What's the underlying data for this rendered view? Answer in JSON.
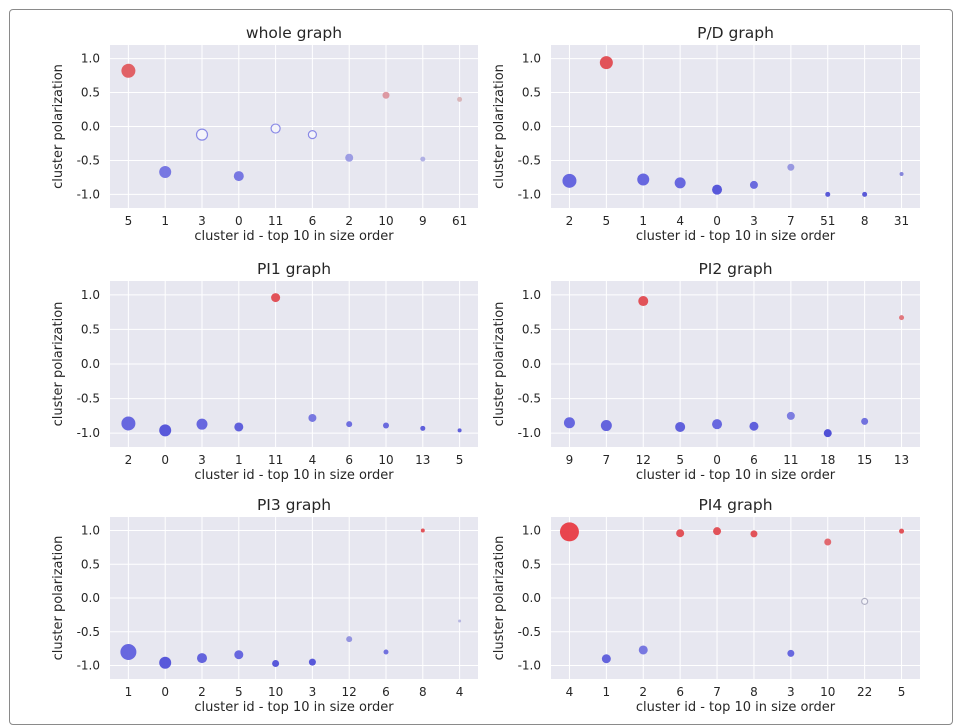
{
  "chart_data": [
    {
      "type": "scatter",
      "title": "whole graph",
      "xlabel": "cluster id - top 10 in size order",
      "ylabel": "cluster polarization",
      "ylim": [
        -1.2,
        1.2
      ],
      "yticks": [
        "1.0",
        "0.5",
        "0.0",
        "-0.5",
        "-1.0"
      ],
      "grid": true,
      "points": [
        {
          "id": "5",
          "y": 0.82,
          "size": 7.0,
          "color": "#e05a5e",
          "alpha": 0.95,
          "hollow": false
        },
        {
          "id": "1",
          "y": -0.67,
          "size": 6.0,
          "color": "#6a6ae0",
          "alpha": 0.9,
          "hollow": false
        },
        {
          "id": "3",
          "y": -0.12,
          "size": 5.5,
          "color": "#8a8ae6",
          "alpha": 0.9,
          "hollow": true
        },
        {
          "id": "0",
          "y": -0.73,
          "size": 5.0,
          "color": "#6a6ae0",
          "alpha": 0.9,
          "hollow": false
        },
        {
          "id": "11",
          "y": -0.03,
          "size": 4.5,
          "color": "#8a8ae6",
          "alpha": 0.9,
          "hollow": true
        },
        {
          "id": "6",
          "y": -0.12,
          "size": 4.0,
          "color": "#8a8ae6",
          "alpha": 0.9,
          "hollow": true
        },
        {
          "id": "2",
          "y": -0.46,
          "size": 4.0,
          "color": "#8a8ae0",
          "alpha": 0.8,
          "hollow": false
        },
        {
          "id": "10",
          "y": 0.46,
          "size": 3.5,
          "color": "#d98a94",
          "alpha": 0.85,
          "hollow": false
        },
        {
          "id": "9",
          "y": -0.48,
          "size": 2.5,
          "color": "#a0a0e0",
          "alpha": 0.8,
          "hollow": false
        },
        {
          "id": "61",
          "y": 0.4,
          "size": 2.5,
          "color": "#d4a8aa",
          "alpha": 0.8,
          "hollow": false
        }
      ]
    },
    {
      "type": "scatter",
      "title": "P/D graph",
      "xlabel": "cluster id - top 10 in size order",
      "ylabel": "cluster polarization",
      "ylim": [
        -1.2,
        1.2
      ],
      "yticks": [
        "1.0",
        "0.5",
        "0.0",
        "-0.5",
        "-1.0"
      ],
      "grid": true,
      "points": [
        {
          "id": "2",
          "y": -0.8,
          "size": 7.0,
          "color": "#6060dd",
          "alpha": 0.95,
          "hollow": false
        },
        {
          "id": "5",
          "y": 0.94,
          "size": 6.5,
          "color": "#e04a50",
          "alpha": 0.95,
          "hollow": false
        },
        {
          "id": "1",
          "y": -0.78,
          "size": 6.0,
          "color": "#6060dd",
          "alpha": 0.95,
          "hollow": false
        },
        {
          "id": "4",
          "y": -0.83,
          "size": 5.5,
          "color": "#6060dd",
          "alpha": 0.95,
          "hollow": false
        },
        {
          "id": "0",
          "y": -0.93,
          "size": 5.0,
          "color": "#5050d8",
          "alpha": 0.95,
          "hollow": false
        },
        {
          "id": "3",
          "y": -0.86,
          "size": 4.0,
          "color": "#5c5cdb",
          "alpha": 0.9,
          "hollow": false
        },
        {
          "id": "7",
          "y": -0.6,
          "size": 3.5,
          "color": "#8888dd",
          "alpha": 0.85,
          "hollow": false
        },
        {
          "id": "51",
          "y": -1.0,
          "size": 2.5,
          "color": "#4848d4",
          "alpha": 0.9,
          "hollow": false
        },
        {
          "id": "8",
          "y": -1.0,
          "size": 2.5,
          "color": "#4848d4",
          "alpha": 0.9,
          "hollow": false
        },
        {
          "id": "31",
          "y": -0.7,
          "size": 2.0,
          "color": "#7a7ad8",
          "alpha": 0.9,
          "hollow": false
        }
      ]
    },
    {
      "type": "scatter",
      "title": "PI1 graph",
      "xlabel": "cluster id - top 10 in size order",
      "ylabel": "cluster polarization",
      "ylim": [
        -1.2,
        1.2
      ],
      "yticks": [
        "1.0",
        "0.5",
        "0.0",
        "-0.5",
        "-1.0"
      ],
      "grid": true,
      "points": [
        {
          "id": "2",
          "y": -0.86,
          "size": 7.0,
          "color": "#6060dd",
          "alpha": 0.95,
          "hollow": false
        },
        {
          "id": "0",
          "y": -0.96,
          "size": 6.0,
          "color": "#5050d8",
          "alpha": 0.95,
          "hollow": false
        },
        {
          "id": "3",
          "y": -0.87,
          "size": 5.5,
          "color": "#6060dd",
          "alpha": 0.95,
          "hollow": false
        },
        {
          "id": "1",
          "y": -0.91,
          "size": 4.5,
          "color": "#5858da",
          "alpha": 0.95,
          "hollow": false
        },
        {
          "id": "11",
          "y": 0.96,
          "size": 4.5,
          "color": "#e04a50",
          "alpha": 0.95,
          "hollow": false
        },
        {
          "id": "4",
          "y": -0.78,
          "size": 4.0,
          "color": "#6a6ade",
          "alpha": 0.9,
          "hollow": false
        },
        {
          "id": "6",
          "y": -0.87,
          "size": 3.0,
          "color": "#6060dd",
          "alpha": 0.9,
          "hollow": false
        },
        {
          "id": "10",
          "y": -0.89,
          "size": 3.0,
          "color": "#5c5cdb",
          "alpha": 0.9,
          "hollow": false
        },
        {
          "id": "13",
          "y": -0.93,
          "size": 2.5,
          "color": "#5050d8",
          "alpha": 0.9,
          "hollow": false
        },
        {
          "id": "5",
          "y": -0.96,
          "size": 2.0,
          "color": "#5050d8",
          "alpha": 0.9,
          "hollow": false
        }
      ]
    },
    {
      "type": "scatter",
      "title": "PI2 graph",
      "xlabel": "cluster id - top 10 in size order",
      "ylabel": "cluster polarization",
      "ylim": [
        -1.2,
        1.2
      ],
      "yticks": [
        "1.0",
        "0.5",
        "0.0",
        "-0.5",
        "-1.0"
      ],
      "grid": true,
      "points": [
        {
          "id": "9",
          "y": -0.85,
          "size": 5.5,
          "color": "#6060dd",
          "alpha": 0.95,
          "hollow": false
        },
        {
          "id": "7",
          "y": -0.89,
          "size": 5.5,
          "color": "#5c5cdb",
          "alpha": 0.95,
          "hollow": false
        },
        {
          "id": "12",
          "y": 0.91,
          "size": 5.0,
          "color": "#e04a50",
          "alpha": 0.95,
          "hollow": false
        },
        {
          "id": "5",
          "y": -0.91,
          "size": 5.0,
          "color": "#5858da",
          "alpha": 0.95,
          "hollow": false
        },
        {
          "id": "0",
          "y": -0.87,
          "size": 5.0,
          "color": "#6060dd",
          "alpha": 0.95,
          "hollow": false
        },
        {
          "id": "6",
          "y": -0.9,
          "size": 4.5,
          "color": "#5858da",
          "alpha": 0.95,
          "hollow": false
        },
        {
          "id": "11",
          "y": -0.75,
          "size": 4.0,
          "color": "#7070de",
          "alpha": 0.9,
          "hollow": false
        },
        {
          "id": "18",
          "y": -1.0,
          "size": 4.0,
          "color": "#4848d4",
          "alpha": 0.95,
          "hollow": false
        },
        {
          "id": "15",
          "y": -0.83,
          "size": 3.5,
          "color": "#6464dc",
          "alpha": 0.9,
          "hollow": false
        },
        {
          "id": "13",
          "y": 0.67,
          "size": 2.5,
          "color": "#e06a70",
          "alpha": 0.9,
          "hollow": false
        }
      ]
    },
    {
      "type": "scatter",
      "title": "PI3 graph",
      "xlabel": "cluster id - top 10 in size order",
      "ylabel": "cluster polarization",
      "ylim": [
        -1.2,
        1.2
      ],
      "yticks": [
        "1.0",
        "0.5",
        "0.0",
        "-0.5",
        "-1.0"
      ],
      "grid": true,
      "points": [
        {
          "id": "1",
          "y": -0.8,
          "size": 8.0,
          "color": "#6060dd",
          "alpha": 0.95,
          "hollow": false
        },
        {
          "id": "0",
          "y": -0.96,
          "size": 6.0,
          "color": "#5050d8",
          "alpha": 0.95,
          "hollow": false
        },
        {
          "id": "2",
          "y": -0.89,
          "size": 5.0,
          "color": "#5c5cdb",
          "alpha": 0.95,
          "hollow": false
        },
        {
          "id": "5",
          "y": -0.84,
          "size": 4.5,
          "color": "#6060dd",
          "alpha": 0.95,
          "hollow": false
        },
        {
          "id": "10",
          "y": -0.97,
          "size": 3.5,
          "color": "#5050d8",
          "alpha": 0.95,
          "hollow": false
        },
        {
          "id": "3",
          "y": -0.95,
          "size": 3.5,
          "color": "#5050d8",
          "alpha": 0.95,
          "hollow": false
        },
        {
          "id": "12",
          "y": -0.61,
          "size": 3.0,
          "color": "#8484dc",
          "alpha": 0.85,
          "hollow": false
        },
        {
          "id": "6",
          "y": -0.8,
          "size": 2.5,
          "color": "#6464dc",
          "alpha": 0.9,
          "hollow": false
        },
        {
          "id": "8",
          "y": 1.0,
          "size": 2.0,
          "color": "#e04a50",
          "alpha": 0.95,
          "hollow": false
        },
        {
          "id": "4",
          "y": -0.34,
          "size": 1.5,
          "color": "#a8a8dc",
          "alpha": 0.8,
          "hollow": false
        }
      ]
    },
    {
      "type": "scatter",
      "title": "PI4 graph",
      "xlabel": "cluster id - top 10 in size order",
      "ylabel": "cluster polarization",
      "ylim": [
        -1.2,
        1.2
      ],
      "yticks": [
        "1.0",
        "0.5",
        "0.0",
        "-0.5",
        "-1.0"
      ],
      "grid": true,
      "points": [
        {
          "id": "4",
          "y": 0.98,
          "size": 9.5,
          "color": "#e83c44",
          "alpha": 0.95,
          "hollow": false
        },
        {
          "id": "1",
          "y": -0.9,
          "size": 4.5,
          "color": "#5c5cdb",
          "alpha": 0.95,
          "hollow": false
        },
        {
          "id": "2",
          "y": -0.77,
          "size": 4.5,
          "color": "#6a6ade",
          "alpha": 0.9,
          "hollow": false
        },
        {
          "id": "6",
          "y": 0.96,
          "size": 4.0,
          "color": "#e04a50",
          "alpha": 0.95,
          "hollow": false
        },
        {
          "id": "7",
          "y": 0.99,
          "size": 4.0,
          "color": "#e04a50",
          "alpha": 0.95,
          "hollow": false
        },
        {
          "id": "8",
          "y": 0.95,
          "size": 3.5,
          "color": "#e04a50",
          "alpha": 0.95,
          "hollow": false
        },
        {
          "id": "3",
          "y": -0.82,
          "size": 3.5,
          "color": "#6060dd",
          "alpha": 0.95,
          "hollow": false
        },
        {
          "id": "10",
          "y": 0.83,
          "size": 3.5,
          "color": "#e05a60",
          "alpha": 0.9,
          "hollow": false
        },
        {
          "id": "22",
          "y": -0.05,
          "size": 3.0,
          "color": "#b0b0c4",
          "alpha": 0.9,
          "hollow": true
        },
        {
          "id": "5",
          "y": 0.99,
          "size": 2.5,
          "color": "#e04a50",
          "alpha": 0.95,
          "hollow": false
        }
      ]
    }
  ]
}
